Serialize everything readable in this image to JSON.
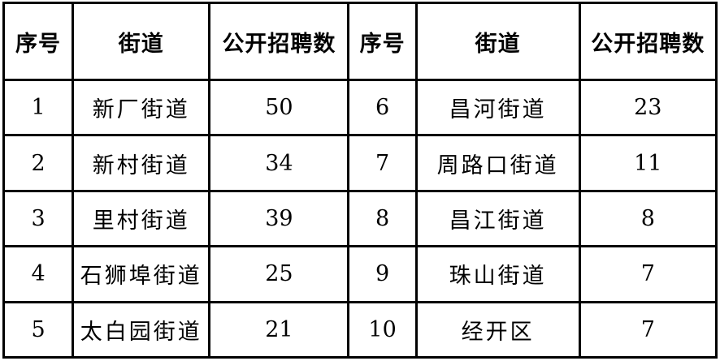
{
  "table": {
    "title": "street-public-recruitment-table",
    "columns": [
      {
        "key": "serial_left",
        "label": "序号"
      },
      {
        "key": "street_left",
        "label": "街道"
      },
      {
        "key": "count_left",
        "label": "公开招聘数"
      },
      {
        "key": "serial_right",
        "label": "序号"
      },
      {
        "key": "street_right",
        "label": "街道"
      },
      {
        "key": "count_right",
        "label": "公开招聘数"
      }
    ],
    "rows": [
      {
        "serial_left": "1",
        "street_left": "新厂街道",
        "count_left": "50",
        "serial_right": "6",
        "street_right": "昌河街道",
        "count_right": "23"
      },
      {
        "serial_left": "2",
        "street_left": "新村街道",
        "count_left": "34",
        "serial_right": "7",
        "street_right": "周路口街道",
        "count_right": "11"
      },
      {
        "serial_left": "3",
        "street_left": "里村街道",
        "count_left": "39",
        "serial_right": "8",
        "street_right": "昌江街道",
        "count_right": "8"
      },
      {
        "serial_left": "4",
        "street_left": "石狮埠街道",
        "count_left": "25",
        "serial_right": "9",
        "street_right": "珠山街道",
        "count_right": "7"
      },
      {
        "serial_left": "5",
        "street_left": "太白园街道",
        "count_left": "21",
        "serial_right": "10",
        "street_right": "经开区",
        "count_right": "7"
      }
    ],
    "colors": {
      "border": "#000000",
      "background": "#ffffff",
      "text": "#000000"
    }
  },
  "chart_data": {
    "type": "table",
    "title": "",
    "columns": [
      "序号",
      "街道",
      "公开招聘数",
      "序号",
      "街道",
      "公开招聘数"
    ],
    "records": [
      {
        "序号": 1,
        "街道": "新厂街道",
        "公开招聘数": 50
      },
      {
        "序号": 2,
        "街道": "新村街道",
        "公开招聘数": 34
      },
      {
        "序号": 3,
        "街道": "里村街道",
        "公开招聘数": 39
      },
      {
        "序号": 4,
        "街道": "石狮埠街道",
        "公开招聘数": 25
      },
      {
        "序号": 5,
        "街道": "太白园街道",
        "公开招聘数": 21
      },
      {
        "序号": 6,
        "街道": "昌河街道",
        "公开招聘数": 23
      },
      {
        "序号": 7,
        "街道": "周路口街道",
        "公开招聘数": 11
      },
      {
        "序号": 8,
        "街道": "昌江街道",
        "公开招聘数": 8
      },
      {
        "序号": 9,
        "街道": "珠山街道",
        "公开招聘数": 7
      },
      {
        "序号": 10,
        "街道": "经开区",
        "公开招聘数": 7
      }
    ]
  }
}
